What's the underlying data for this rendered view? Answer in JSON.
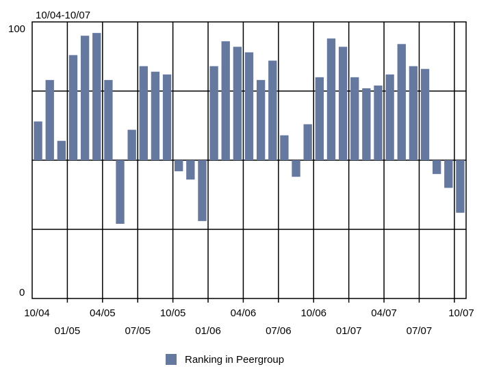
{
  "chart_data": {
    "type": "bar",
    "title": "10/04-10/07",
    "xlabel": "",
    "ylabel": "",
    "ylim": [
      0,
      100
    ],
    "baseline": 50,
    "y_tick_labels": [
      "0",
      "100"
    ],
    "grid": true,
    "grid_y_values": [
      25,
      50,
      75
    ],
    "x_tick_labels_top": [
      "10/04",
      "04/05",
      "10/05",
      "04/06",
      "10/06",
      "04/07",
      "10/07"
    ],
    "x_tick_labels_bottom": [
      "01/05",
      "07/05",
      "01/06",
      "07/06",
      "01/07",
      "07/07"
    ],
    "bar_color": "#6478a0",
    "legend_position": "bottom-center",
    "series": [
      {
        "name": "Ranking in Peergroup",
        "values": [
          64,
          79,
          57,
          88,
          95,
          96,
          79,
          27,
          61,
          84,
          82,
          81,
          46,
          43,
          28,
          84,
          93,
          91,
          89,
          79,
          86,
          59,
          44,
          63,
          80,
          94,
          91,
          80,
          76,
          77,
          81,
          92,
          84,
          83,
          45,
          40,
          31
        ]
      }
    ]
  }
}
